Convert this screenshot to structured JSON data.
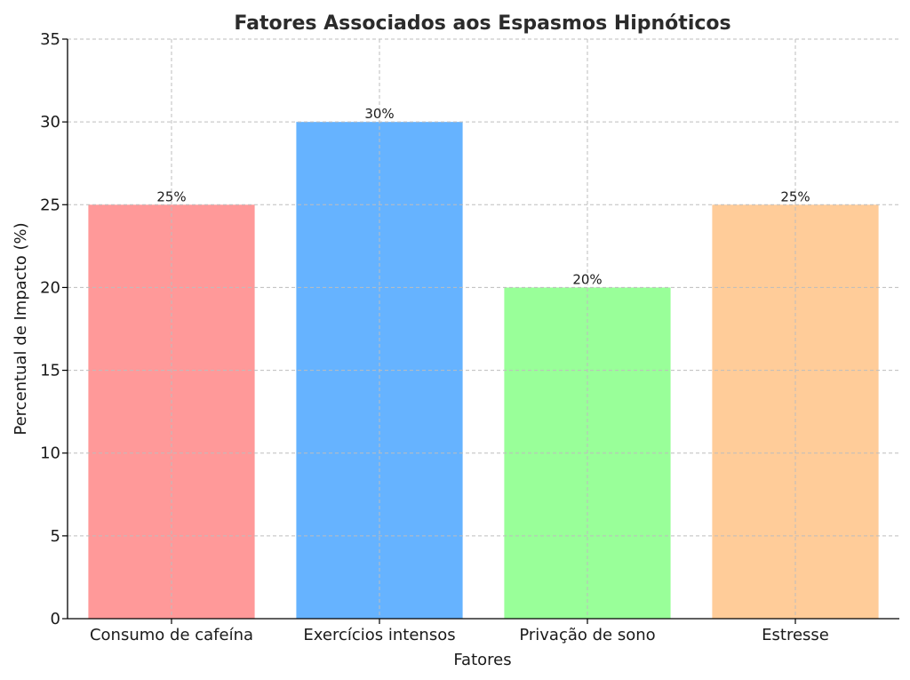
{
  "chart_data": {
    "type": "bar",
    "title": "Fatores Associados aos Espasmos Hipnóticos",
    "xlabel": "Fatores",
    "ylabel": "Percentual de Impacto (%)",
    "categories": [
      "Consumo de cafeína",
      "Exercícios intensos",
      "Privação de sono",
      "Estresse"
    ],
    "values": [
      25,
      30,
      20,
      25
    ],
    "value_labels": [
      "25%",
      "30%",
      "20%",
      "25%"
    ],
    "colors": [
      "#ff9999",
      "#66b3ff",
      "#99ff99",
      "#ffcc99"
    ],
    "ylim": [
      0,
      35
    ],
    "yticks": [
      0,
      5,
      10,
      15,
      20,
      25,
      30,
      35
    ],
    "grid": true,
    "legend": "none"
  }
}
